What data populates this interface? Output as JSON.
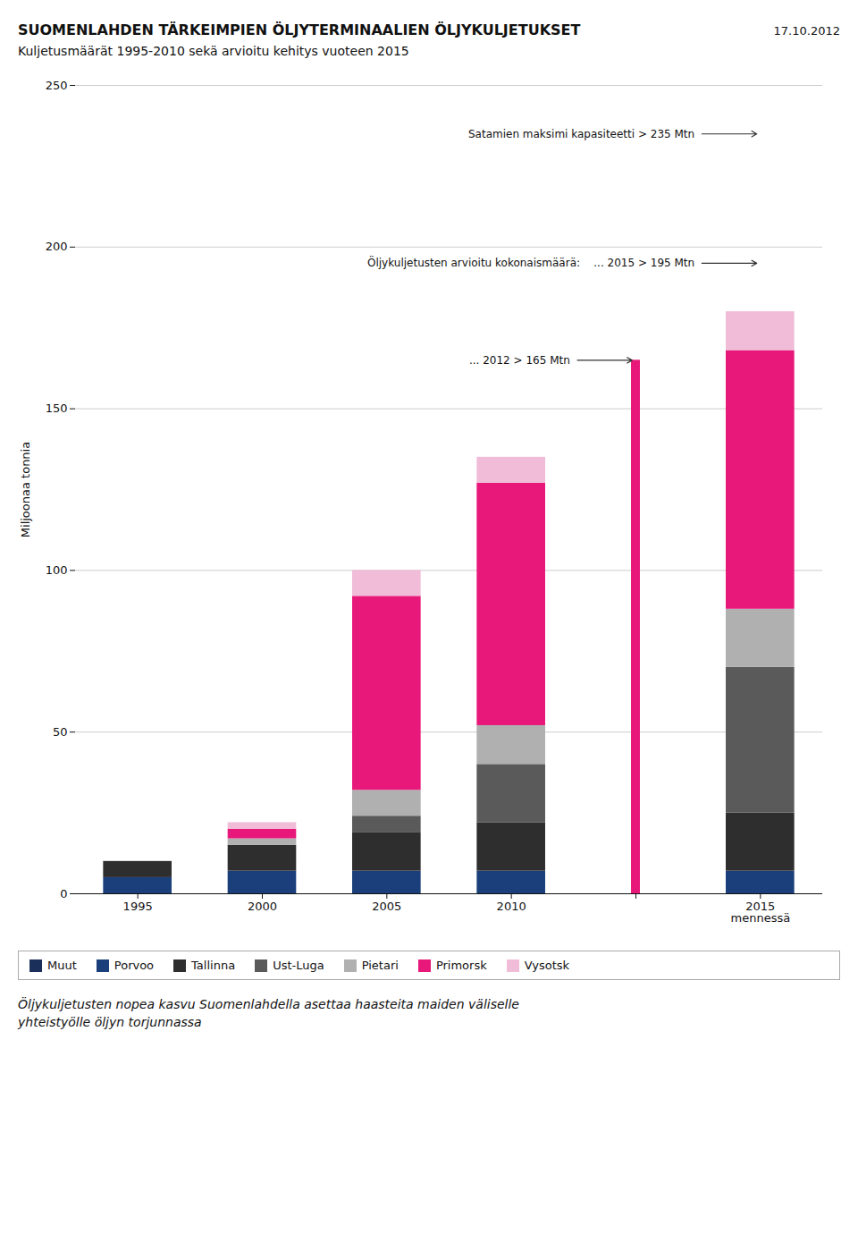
{
  "chart_data": {
    "type": "bar",
    "stacked": true,
    "title": "SUOMENLAHDEN TÄRKEIMPIEN ÖLJYTERMINAALIEN ÖLJYKULJETUKSET",
    "subtitle": "Kuljetusmäärät 1995-2010 sekä arvioitu kehitys vuoteen 2015",
    "caption": "Öljykuljetusten nopea kasvu Suomenlahdella asettaa haasteita maiden väliselle\nyhteistyölle öljyn torjunnassa",
    "ylabel": "Miljoonaa tonnia",
    "categories": [
      "1995",
      "2000",
      "2005",
      "2010",
      null,
      "2015\nmennessä"
    ],
    "series": [
      {
        "name": "Muut",
        "color": "#1a2f5a",
        "values": [
          null,
          null,
          null,
          null,
          null,
          null
        ]
      },
      {
        "name": "Porvoo",
        "color": "#1a3f7a",
        "values": [
          5,
          7,
          7,
          7,
          0,
          7
        ]
      },
      {
        "name": "Tallinna",
        "color": "#2e2e2e",
        "values": [
          5,
          8,
          12,
          15,
          0,
          18
        ]
      },
      {
        "name": "Ust-Luga",
        "color": "#5a5a5a",
        "values": [
          0,
          0,
          5,
          18,
          0,
          45
        ]
      },
      {
        "name": "Pietari",
        "color": "#b0b0b0",
        "values": [
          0,
          2,
          8,
          12,
          0,
          18
        ]
      },
      {
        "name": "Primorsk",
        "color": "#e8187a",
        "values": [
          0,
          3,
          60,
          75,
          0,
          80
        ]
      },
      {
        "name": "Vysotsk",
        "color": "#f0bcd8",
        "values": [
          0,
          2,
          8,
          8,
          0,
          12
        ]
      },
      {
        "name": null,
        "color": "#e8187a",
        "values": [
          null,
          null,
          null,
          null,
          165,
          null
        ]
      }
    ],
    "ylim": [
      0,
      250
    ],
    "yticks": [
      0,
      50,
      100,
      150,
      200,
      250
    ],
    "grid": true,
    "legend": "bottom",
    "annotations": [
      {
        "text": "17.10.2012"
      },
      {
        "text": "Satamien maksimi kapasiteetti > 235 Mtn",
        "x": 5,
        "y": 235
      },
      {
        "text": "Öljykuljetusten arvioitu kokonaismäärä:    ... 2015 > 195 Mtn",
        "x": 5,
        "y": 195
      },
      {
        "text": "... 2012 > 165 Mtn",
        "x": 4,
        "y": 165
      }
    ]
  }
}
